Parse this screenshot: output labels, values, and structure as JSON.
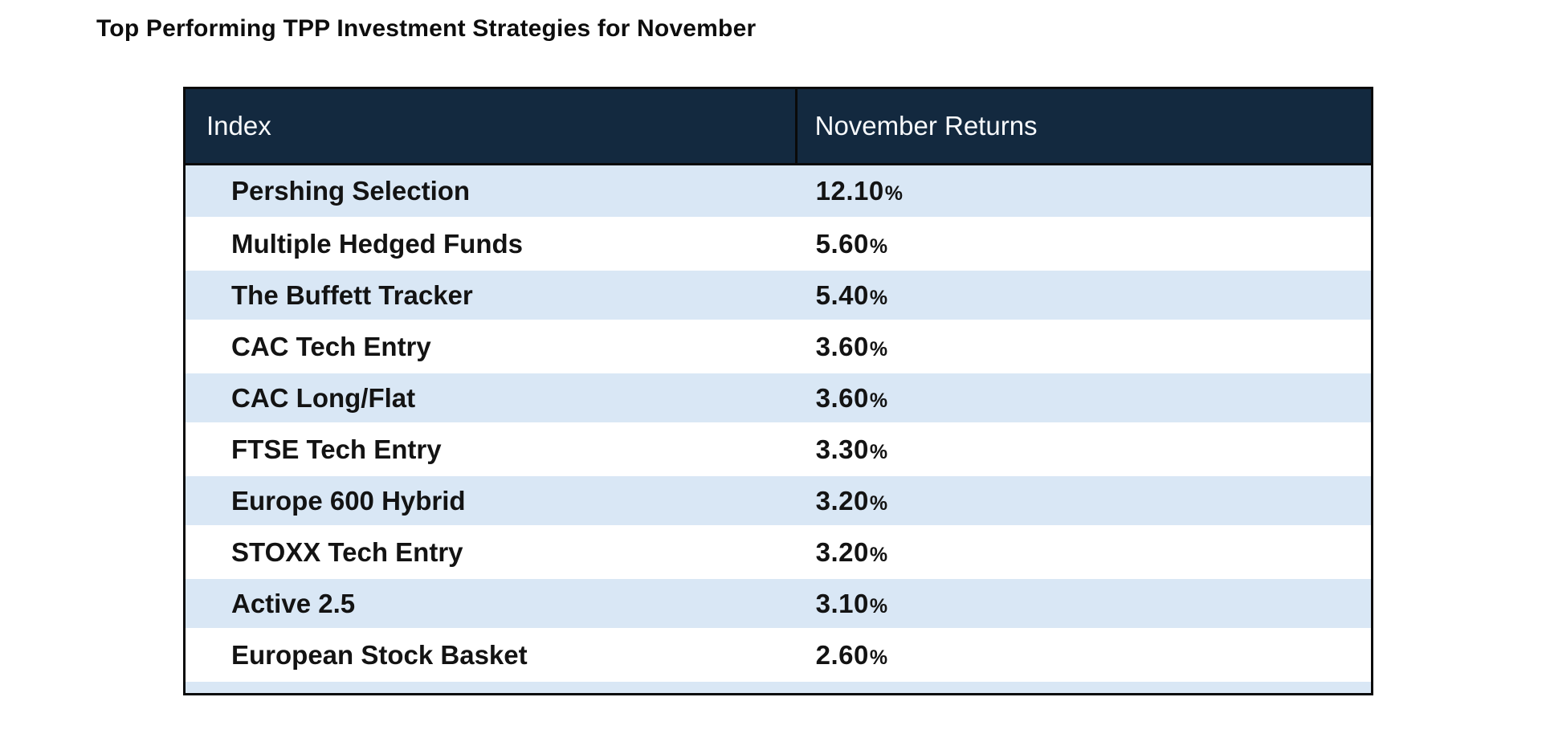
{
  "title": "Top Performing TPP Investment Strategies for November",
  "table": {
    "header": {
      "index_label": "Index",
      "returns_label": "November Returns"
    },
    "rows": [
      {
        "index": "Pershing Selection",
        "return": "12.10%"
      },
      {
        "index": "Multiple Hedged Funds",
        "return": "5.60%"
      },
      {
        "index": "The Buffett Tracker",
        "return": "5.40%"
      },
      {
        "index": "CAC Tech Entry",
        "return": "3.60%"
      },
      {
        "index": "CAC Long/Flat",
        "return": "3.60%"
      },
      {
        "index": "FTSE Tech Entry",
        "return": "3.30%"
      },
      {
        "index": "Europe 600 Hybrid",
        "return": "3.20%"
      },
      {
        "index": "STOXX Tech Entry",
        "return": "3.20%"
      },
      {
        "index": "Active 2.5",
        "return": "3.10%"
      },
      {
        "index": "European Stock Basket",
        "return": "2.60%"
      }
    ],
    "colors": {
      "header_bg": "#13293f",
      "header_text": "#f7f9fb",
      "row_alt_bg": "#d9e7f5",
      "row_bg": "#ffffff",
      "border": "#0a0a0a",
      "body_text": "#131313"
    }
  },
  "chart_data": {
    "type": "table",
    "title": "Top Performing TPP Investment Strategies for November",
    "columns": [
      "Index",
      "November Returns"
    ],
    "categories": [
      "Pershing Selection",
      "Multiple Hedged Funds",
      "The Buffett Tracker",
      "CAC Tech Entry",
      "CAC Long/Flat",
      "FTSE Tech Entry",
      "Europe 600 Hybrid",
      "STOXX Tech Entry",
      "Active 2.5",
      "European Stock Basket"
    ],
    "values": [
      12.1,
      5.6,
      5.4,
      3.6,
      3.6,
      3.3,
      3.2,
      3.2,
      3.1,
      2.6
    ],
    "value_format": "percent_two_decimals",
    "layout": {
      "striped": true,
      "stripe_start": "alt",
      "header_style": "dark-navy-white-text"
    }
  }
}
